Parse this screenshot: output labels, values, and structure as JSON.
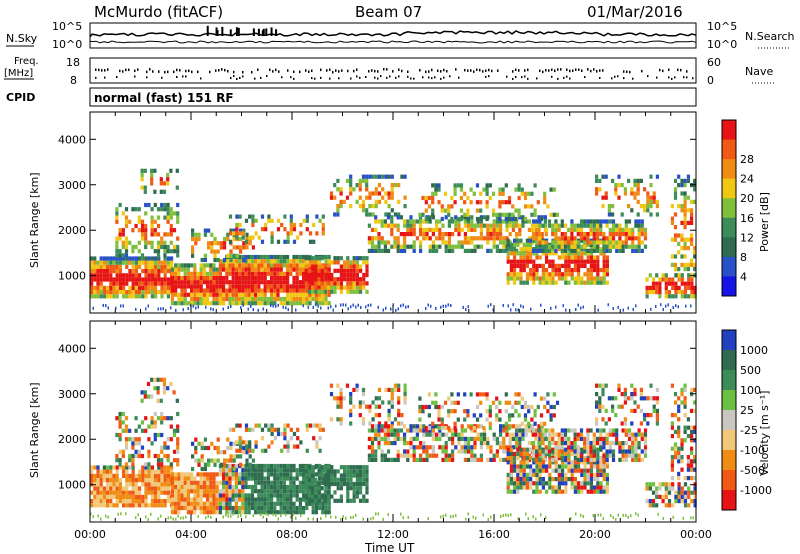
{
  "header": {
    "station": "McMurdo (fitACF)",
    "beam": "Beam 07",
    "date": "01/Mar/2016"
  },
  "panels": {
    "noise": {
      "left_label": "N.Sky",
      "right_label": "N.Search",
      "left_ticks": [
        "10^5",
        "10^0"
      ],
      "right_ticks": [
        "10^5",
        "10^0"
      ]
    },
    "freq": {
      "left_label_1": "Freq.",
      "left_label_2": "[MHz]",
      "right_label": "Nave",
      "left_ticks": [
        "18",
        "8"
      ],
      "right_ticks": [
        "60",
        "0"
      ]
    },
    "cpid": {
      "label": "CPID",
      "text": "normal (fast) 151 RF"
    }
  },
  "chart_data": [
    {
      "type": "heatmap",
      "title": "",
      "xlabel": "",
      "ylabel": "Slant Range [km]",
      "ylim": [
        180,
        4600
      ],
      "y_ticks": [
        "1000",
        "2000",
        "3000",
        "4000"
      ],
      "x_range_hours": [
        0,
        24
      ],
      "colorbar": {
        "label": "Power [dB]",
        "ticks": [
          "4",
          "8",
          "12",
          "16",
          "20",
          "24",
          "28"
        ],
        "colors": [
          "#1414e6",
          "#2850c8",
          "#2e6b4f",
          "#3c8c5a",
          "#7fbf3c",
          "#f0c814",
          "#f08c14",
          "#f05a14",
          "#e61414"
        ]
      }
    },
    {
      "type": "heatmap",
      "title": "",
      "xlabel": "Time UT",
      "ylabel": "Slant Range [km]",
      "ylim": [
        180,
        4600
      ],
      "y_ticks": [
        "1000",
        "2000",
        "3000",
        "4000"
      ],
      "x_ticks": [
        "00:00",
        "04:00",
        "08:00",
        "12:00",
        "16:00",
        "20:00",
        "00:00"
      ],
      "colorbar": {
        "label": "Velocity [m s⁻¹]",
        "ticks": [
          "1000",
          "500",
          "100",
          "25",
          "-25",
          "-100",
          "-500",
          "-1000"
        ],
        "colors": [
          "#2040c0",
          "#2e6b4f",
          "#3c8c5a",
          "#6cc040",
          "#c8c8c0",
          "#f0c878",
          "#f08c14",
          "#f05a14",
          "#e61414"
        ]
      }
    }
  ]
}
